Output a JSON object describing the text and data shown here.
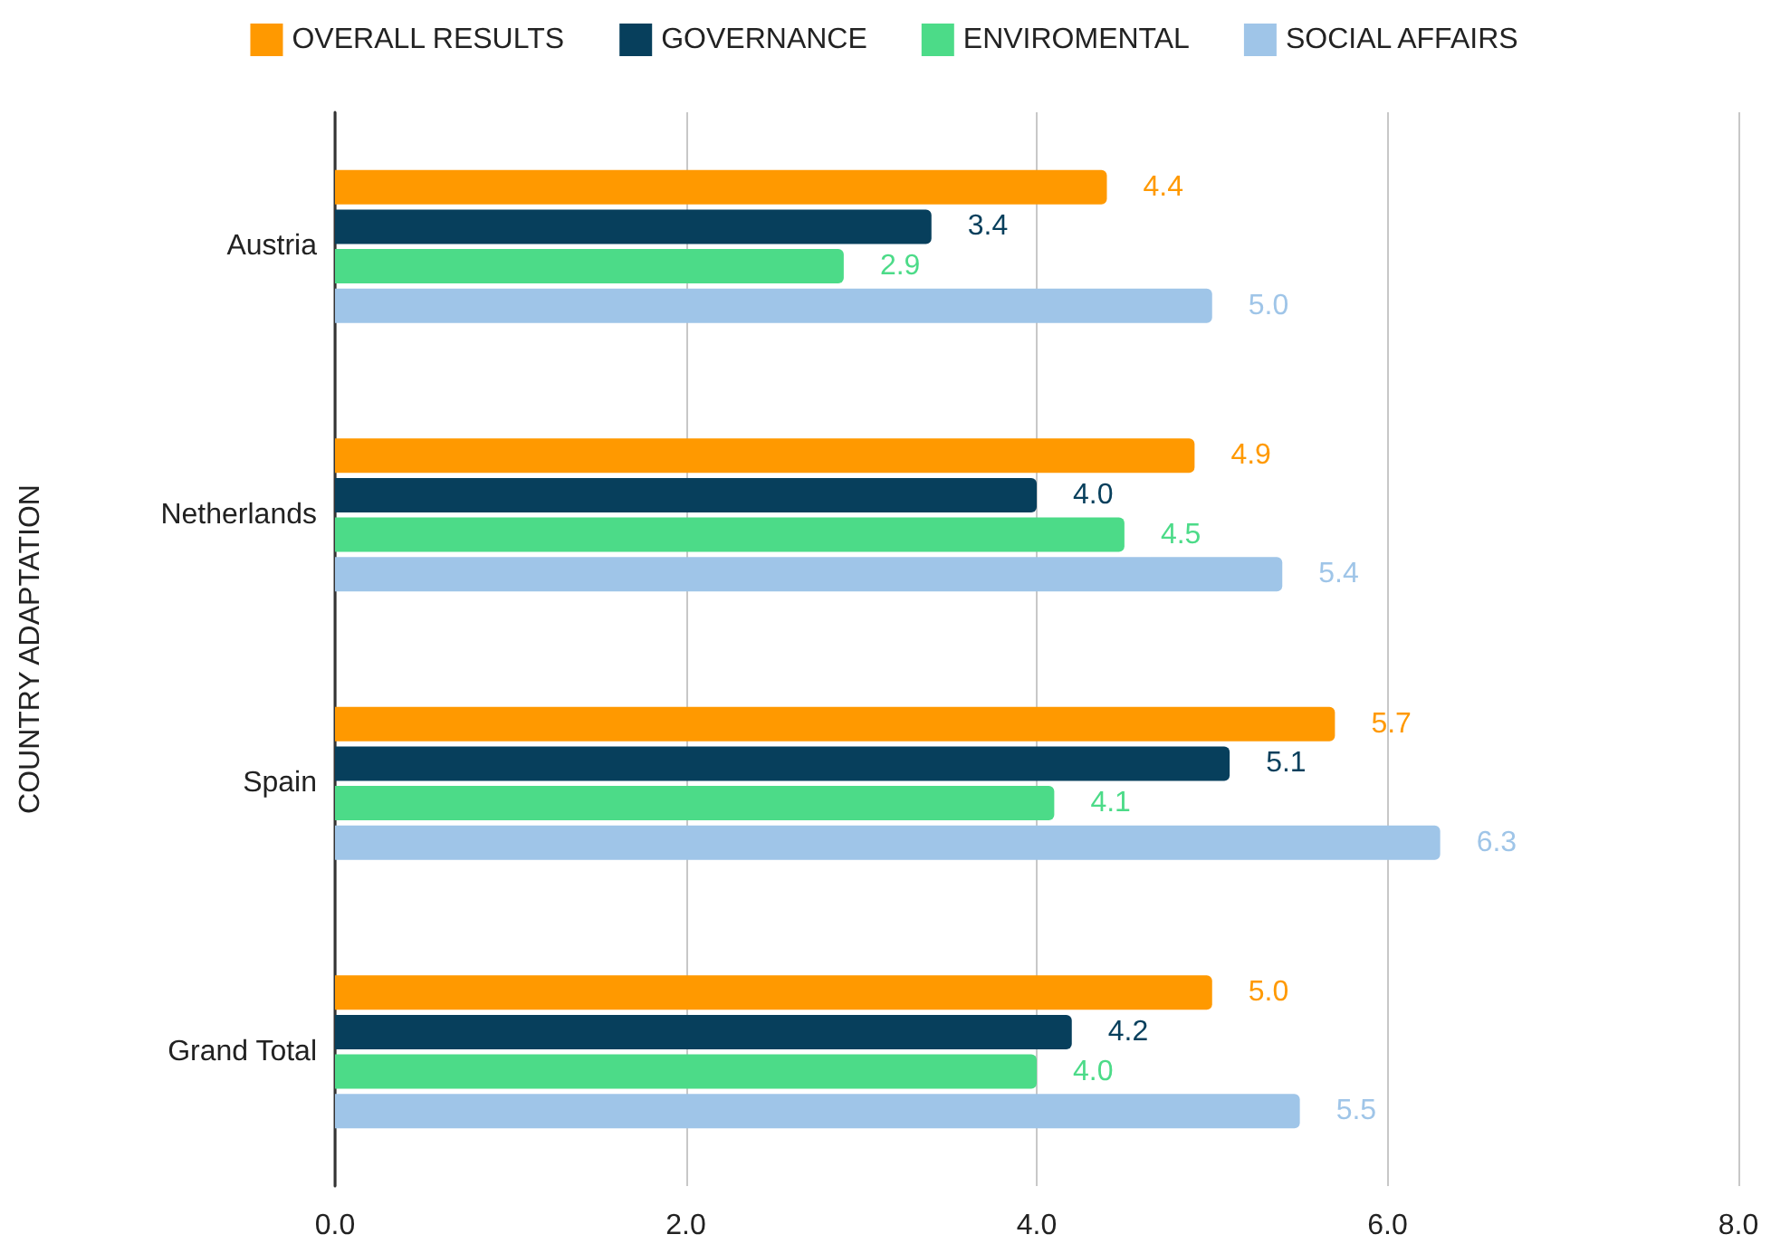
{
  "chart_data": {
    "type": "bar",
    "orientation": "horizontal",
    "ylabel": "COUNTRY ADAPTATION",
    "categories": [
      "Austria",
      "Netherlands",
      "Spain",
      "Grand Total"
    ],
    "series": [
      {
        "name": "OVERALL RESULTS",
        "color": "#ff9900",
        "values": [
          4.4,
          4.9,
          5.7,
          5.0
        ],
        "value_labels": [
          "4.4",
          "4.9",
          "5.7",
          "5.0"
        ]
      },
      {
        "name": "GOVERNANCE",
        "color": "#073f5c",
        "values": [
          3.4,
          4.0,
          5.1,
          4.2
        ],
        "value_labels": [
          "3.4",
          "4.0",
          "5.1",
          "4.2"
        ]
      },
      {
        "name": "ENVIROMENTAL",
        "color": "#4cdb88",
        "values": [
          2.9,
          4.5,
          4.1,
          4.0
        ],
        "value_labels": [
          "2.9",
          "4.5",
          "4.1",
          "4.0"
        ]
      },
      {
        "name": "SOCIAL AFFAIRS",
        "color": "#9fc5e8",
        "values": [
          5.0,
          5.4,
          6.3,
          5.5
        ],
        "value_labels": [
          "5.0",
          "5.4",
          "6.3",
          "5.5"
        ]
      }
    ],
    "xlim": [
      0,
      8
    ],
    "xticks": [
      {
        "value": 0,
        "label": "0.0"
      },
      {
        "value": 2,
        "label": "2.0"
      },
      {
        "value": 4,
        "label": "4.0"
      },
      {
        "value": 6,
        "label": "6.0"
      },
      {
        "value": 8,
        "label": "8.0"
      }
    ],
    "grid": "x",
    "legend": "top"
  }
}
